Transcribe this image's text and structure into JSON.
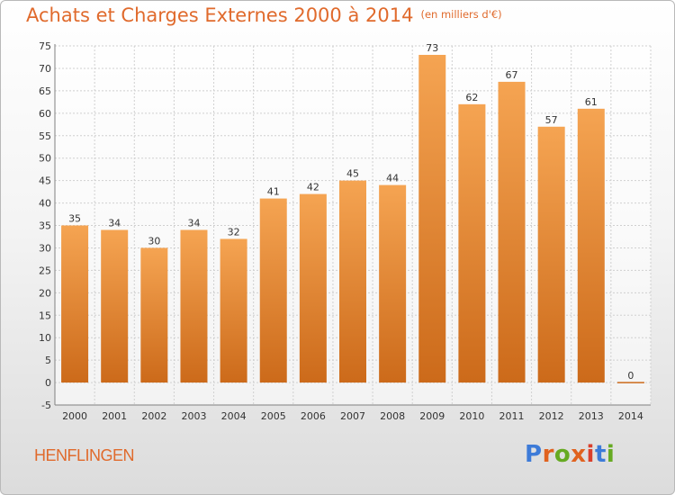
{
  "header": {
    "title": "Achats et Charges Externes 2000 à 2014",
    "unit": "(en milliers d'€)"
  },
  "footer": {
    "commune": "HENFLINGEN",
    "brand": "Proxiti"
  },
  "colors": {
    "bar_light": "#f5a452",
    "bar_dark": "#cc6a1a",
    "title": "#e06a2c",
    "grid": "#d0d0d0",
    "axis": "#808080",
    "brand_letters": [
      "#3d7bd8",
      "#e0621f",
      "#66aa22",
      "#e0621f",
      "#d93f2c",
      "#3d7bd8",
      "#66aa22"
    ]
  },
  "chart_data": {
    "type": "bar",
    "title": "Achats et Charges Externes 2000 à 2014",
    "subtitle": "(en milliers d'€)",
    "xlabel": "",
    "ylabel": "",
    "categories": [
      "2000",
      "2001",
      "2002",
      "2003",
      "2004",
      "2005",
      "2006",
      "2007",
      "2008",
      "2009",
      "2010",
      "2011",
      "2012",
      "2013",
      "2014"
    ],
    "values": [
      35,
      34,
      30,
      34,
      32,
      41,
      42,
      45,
      44,
      73,
      62,
      67,
      57,
      61,
      0
    ],
    "ylim": [
      -5,
      75
    ],
    "yticks": [
      -5,
      0,
      5,
      10,
      15,
      20,
      25,
      30,
      35,
      40,
      45,
      50,
      55,
      60,
      65,
      70,
      75
    ],
    "grid": true,
    "legend": "none"
  }
}
